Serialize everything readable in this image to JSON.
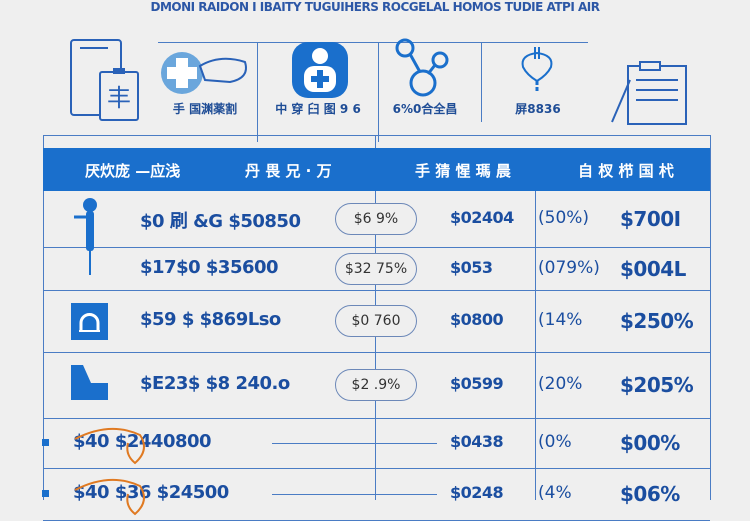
{
  "title": "DMONI RAIDON I IBAITY TUGUIHERS ROCGELAL HOMOS TUDIE ATPI AIR",
  "icons": [
    {
      "name": "clipboard-phone-icon",
      "label": ""
    },
    {
      "name": "medical-hand-icon",
      "label": "手 国渊薬割"
    },
    {
      "name": "medical-badge-icon",
      "label": "中 穿 臼 图 9 6"
    },
    {
      "name": "molecule-icon",
      "label": "6%0合全昌"
    },
    {
      "name": "stethoscope-icon",
      "label": "屏8836"
    },
    {
      "name": "document-icon",
      "label": ""
    }
  ],
  "header": [
    "厌炊庞 —应浅",
    "丹 畏 兄 · 万",
    "手 猜 惺 瑪 晨",
    "自 杈 栉 国 杙"
  ],
  "rows": [
    {
      "icon": "figure-icon",
      "a": "$0 刷 &G  $50850",
      "pill": "$6  9%",
      "b": "$02404",
      "pct": "(50%)",
      "c": "$700I"
    },
    {
      "icon": "",
      "a": "$17$0  $35600",
      "pill": "$32 75%",
      "b": "$053",
      "pct": "(079%)",
      "c": "$004L"
    },
    {
      "icon": "arch-icon",
      "a": "$59 $  $869Lso",
      "pill": "$0 760",
      "b": "$0800",
      "pct": "(14%",
      "c": "$250%"
    },
    {
      "icon": "boot-icon",
      "a": "$E23$  $8 240.o",
      "pill": "$2  .9%",
      "b": "$0599",
      "pct": "(20%",
      "c": "$205%"
    },
    {
      "icon": "dial-icon",
      "a": "$40   $2440800",
      "pill": "",
      "b": "$0438",
      "pct": "(0%",
      "c": "$00%"
    },
    {
      "icon": "dial-icon",
      "a": "$40   $36 $24500",
      "pill": "",
      "b": "$0248",
      "pct": "(4%",
      "c": "$06%"
    }
  ],
  "colors": {
    "accent": "#1a6fcc",
    "text": "#1b4ea0",
    "orange": "#e07a22"
  }
}
